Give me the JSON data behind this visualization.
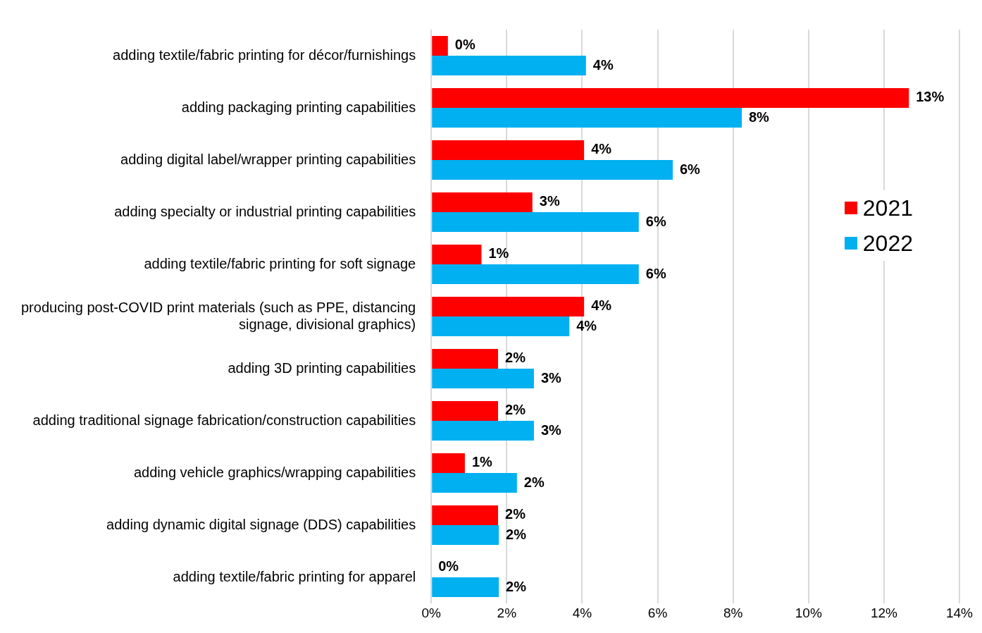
{
  "chart_data": {
    "type": "bar",
    "orientation": "horizontal",
    "categories": [
      "adding textile/fabric printing for décor/furnishings",
      "adding packaging printing capabilities",
      "adding digital label/wrapper printing capabilities",
      "adding specialty or industrial printing capabilities",
      "adding textile/fabric printing for soft signage",
      "producing post-COVID print materials (such as PPE, distancing signage, divisional graphics)",
      "adding 3D printing capabilities",
      "adding traditional signage fabrication/construction capabilities",
      "adding vehicle graphics/wrapping capabilities",
      "adding dynamic digital signage (DDS) capabilities",
      "adding textile/fabric printing for apparel"
    ],
    "series": [
      {
        "name": "2021",
        "color": "#ff0000",
        "values": [
          0.44,
          12.66,
          4.05,
          2.68,
          1.33,
          4.05,
          1.77,
          1.77,
          0.89,
          1.77,
          0
        ],
        "value_labels": [
          "0%",
          "13%",
          "4%",
          "3%",
          "1%",
          "4%",
          "2%",
          "2%",
          "1%",
          "2%",
          "0%"
        ]
      },
      {
        "name": "2022",
        "color": "#00b0f0",
        "values": [
          4.1,
          8.23,
          6.4,
          5.5,
          5.5,
          3.66,
          2.72,
          2.72,
          2.27,
          1.79,
          1.79
        ],
        "value_labels": [
          "4%",
          "8%",
          "6%",
          "6%",
          "6%",
          "4%",
          "3%",
          "3%",
          "2%",
          "2%",
          "2%"
        ]
      }
    ],
    "xlim": [
      0,
      14
    ],
    "xticks": [
      {
        "value": 0,
        "label": "0%"
      },
      {
        "value": 2,
        "label": "2%"
      },
      {
        "value": 4,
        "label": "4%"
      },
      {
        "value": 6,
        "label": "6%"
      },
      {
        "value": 8,
        "label": "8%"
      },
      {
        "value": 10,
        "label": "10%"
      },
      {
        "value": 12,
        "label": "12%"
      },
      {
        "value": 14,
        "label": "14%"
      }
    ],
    "grid": "x",
    "legend": "right"
  }
}
